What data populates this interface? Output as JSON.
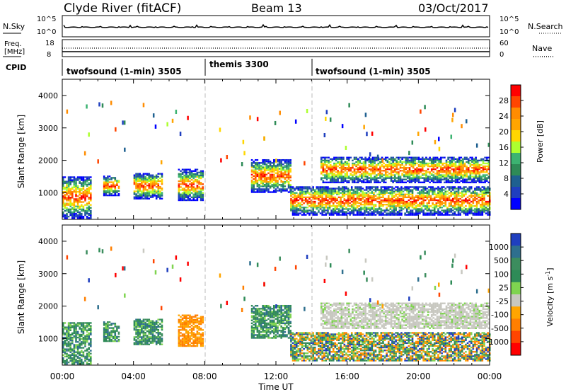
{
  "header": {
    "station": "Clyde River (fitACF)",
    "beam": "Beam 13",
    "date": "03/Oct/2017"
  },
  "noise_panel": {
    "left_label": "N.Sky",
    "right_label": "N.Search",
    "left_ticks": [
      "10^5",
      "10^0"
    ],
    "right_ticks": [
      "10^5",
      "10^0"
    ]
  },
  "freq_panel": {
    "left_label": "Freq.",
    "left_unit": "[MHz]",
    "right_label": "Nave",
    "left_ticks": [
      "18",
      "8"
    ],
    "right_ticks": [
      "60",
      "0"
    ]
  },
  "cpid": {
    "label": "CPID",
    "segments": [
      {
        "name": "twofsound (1-min) 3505",
        "start_h": 0,
        "end_h": 8
      },
      {
        "name": "themis 3300",
        "start_h": 8,
        "end_h": 14
      },
      {
        "name": "twofsound (1-min) 3505",
        "start_h": 14,
        "end_h": 24
      }
    ]
  },
  "power_legend": {
    "title": "Power [dB]",
    "ticks": [
      "28",
      "24",
      "20",
      "16",
      "12",
      "8",
      "4"
    ],
    "colors": [
      "#ff0000",
      "#ff4500",
      "#ff8c00",
      "#ffa500",
      "#ffd700",
      "#adff2f",
      "#3cb371",
      "#2e8b57",
      "#1e6090",
      "#1f3fbf",
      "#0000ff"
    ]
  },
  "velocity_legend": {
    "title": "Velocity [m s",
    "title_sup": "-1",
    "title_end": "]",
    "ticks": [
      "1000",
      "500",
      "100",
      "25",
      "-25",
      "-100",
      "-500",
      "-1000"
    ],
    "colors": [
      "#1f3fbf",
      "#2e6f8e",
      "#3c8d5e",
      "#2e8b57",
      "#7fd450",
      "#c8c8c0",
      "#ffa500",
      "#ff7f00",
      "#ff4500",
      "#ff0000"
    ]
  },
  "chart_data": [
    {
      "type": "heatmap",
      "name": "Power",
      "ylabel": "Slant Range [km]",
      "xlabel": "Time UT",
      "y_ticks": [
        1000,
        2000,
        3000,
        4000
      ],
      "x_tick_labels": [
        "00:00",
        "04:00",
        "08:00",
        "12:00",
        "16:00",
        "20:00",
        "00:00"
      ],
      "xlim_hours": [
        0,
        24
      ],
      "ylim_km": [
        180,
        4500
      ],
      "series": [
        {
          "start_h": 0.0,
          "end_h": 1.6,
          "low_km": 200,
          "high_km": 1500
        },
        {
          "start_h": 2.3,
          "end_h": 3.2,
          "low_km": 900,
          "high_km": 1500
        },
        {
          "start_h": 4.0,
          "end_h": 5.6,
          "low_km": 800,
          "high_km": 1600
        },
        {
          "start_h": 6.5,
          "end_h": 7.9,
          "low_km": 750,
          "high_km": 1700
        },
        {
          "start_h": 10.6,
          "end_h": 12.8,
          "low_km": 1000,
          "high_km": 2000
        },
        {
          "start_h": 12.8,
          "end_h": 24.0,
          "low_km": 300,
          "high_km": 1200
        },
        {
          "start_h": 14.5,
          "end_h": 24.0,
          "low_km": 1300,
          "high_km": 2100
        }
      ]
    },
    {
      "type": "heatmap",
      "name": "Velocity",
      "ylabel": "Slant Range [km]",
      "xlabel": "Time UT",
      "y_ticks": [
        1000,
        2000,
        3000,
        4000
      ],
      "x_tick_labels": [
        "00:00",
        "04:00",
        "08:00",
        "12:00",
        "16:00",
        "20:00",
        "00:00"
      ],
      "xlim_hours": [
        0,
        24
      ],
      "ylim_km": [
        180,
        4500
      ]
    }
  ]
}
